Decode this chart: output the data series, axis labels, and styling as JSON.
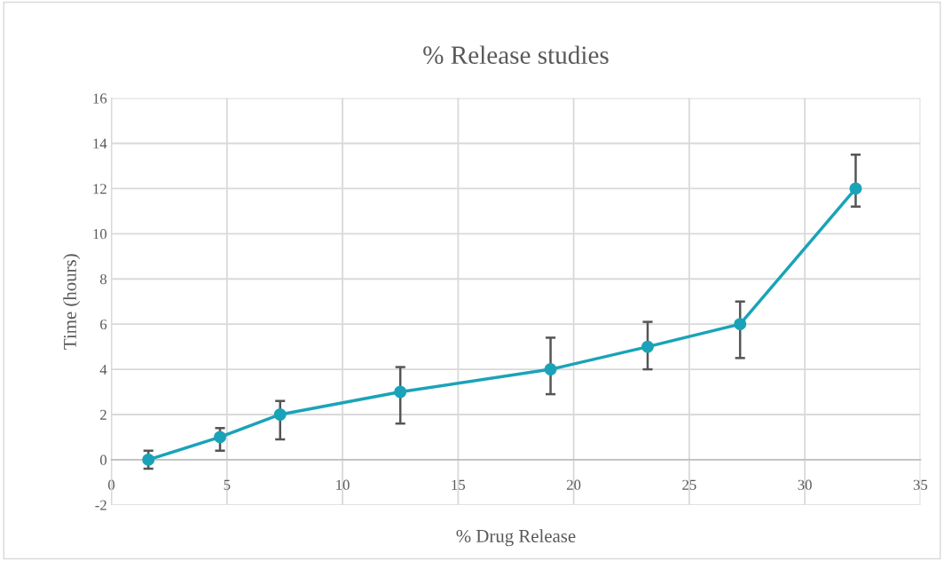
{
  "chart_data": {
    "type": "line",
    "title": "% Release studies",
    "xlabel": "% Drug Release",
    "ylabel": "Time (hours)",
    "x": [
      1.6,
      4.7,
      7.3,
      12.5,
      19.0,
      23.2,
      27.2,
      32.2
    ],
    "series": [
      {
        "color": "#1aa3b8",
        "values": [
          0,
          1,
          2,
          3,
          4,
          5,
          6,
          12
        ],
        "errors": [
          [
            -0.4,
            0.4
          ],
          [
            0.4,
            1.4
          ],
          [
            0.9,
            2.6
          ],
          [
            1.6,
            4.1
          ],
          [
            2.9,
            5.4
          ],
          [
            4.0,
            6.1
          ],
          [
            4.5,
            7.0
          ],
          [
            11.2,
            13.5
          ]
        ]
      }
    ],
    "xlim": [
      0,
      35
    ],
    "xticks": [
      0,
      5,
      10,
      15,
      20,
      25,
      30,
      35
    ],
    "ylim": [
      -2,
      16
    ],
    "yticks": [
      -2,
      0,
      2,
      4,
      6,
      8,
      10,
      12,
      14,
      16
    ],
    "grid": true,
    "marker": "circle",
    "line_style": "solid"
  }
}
